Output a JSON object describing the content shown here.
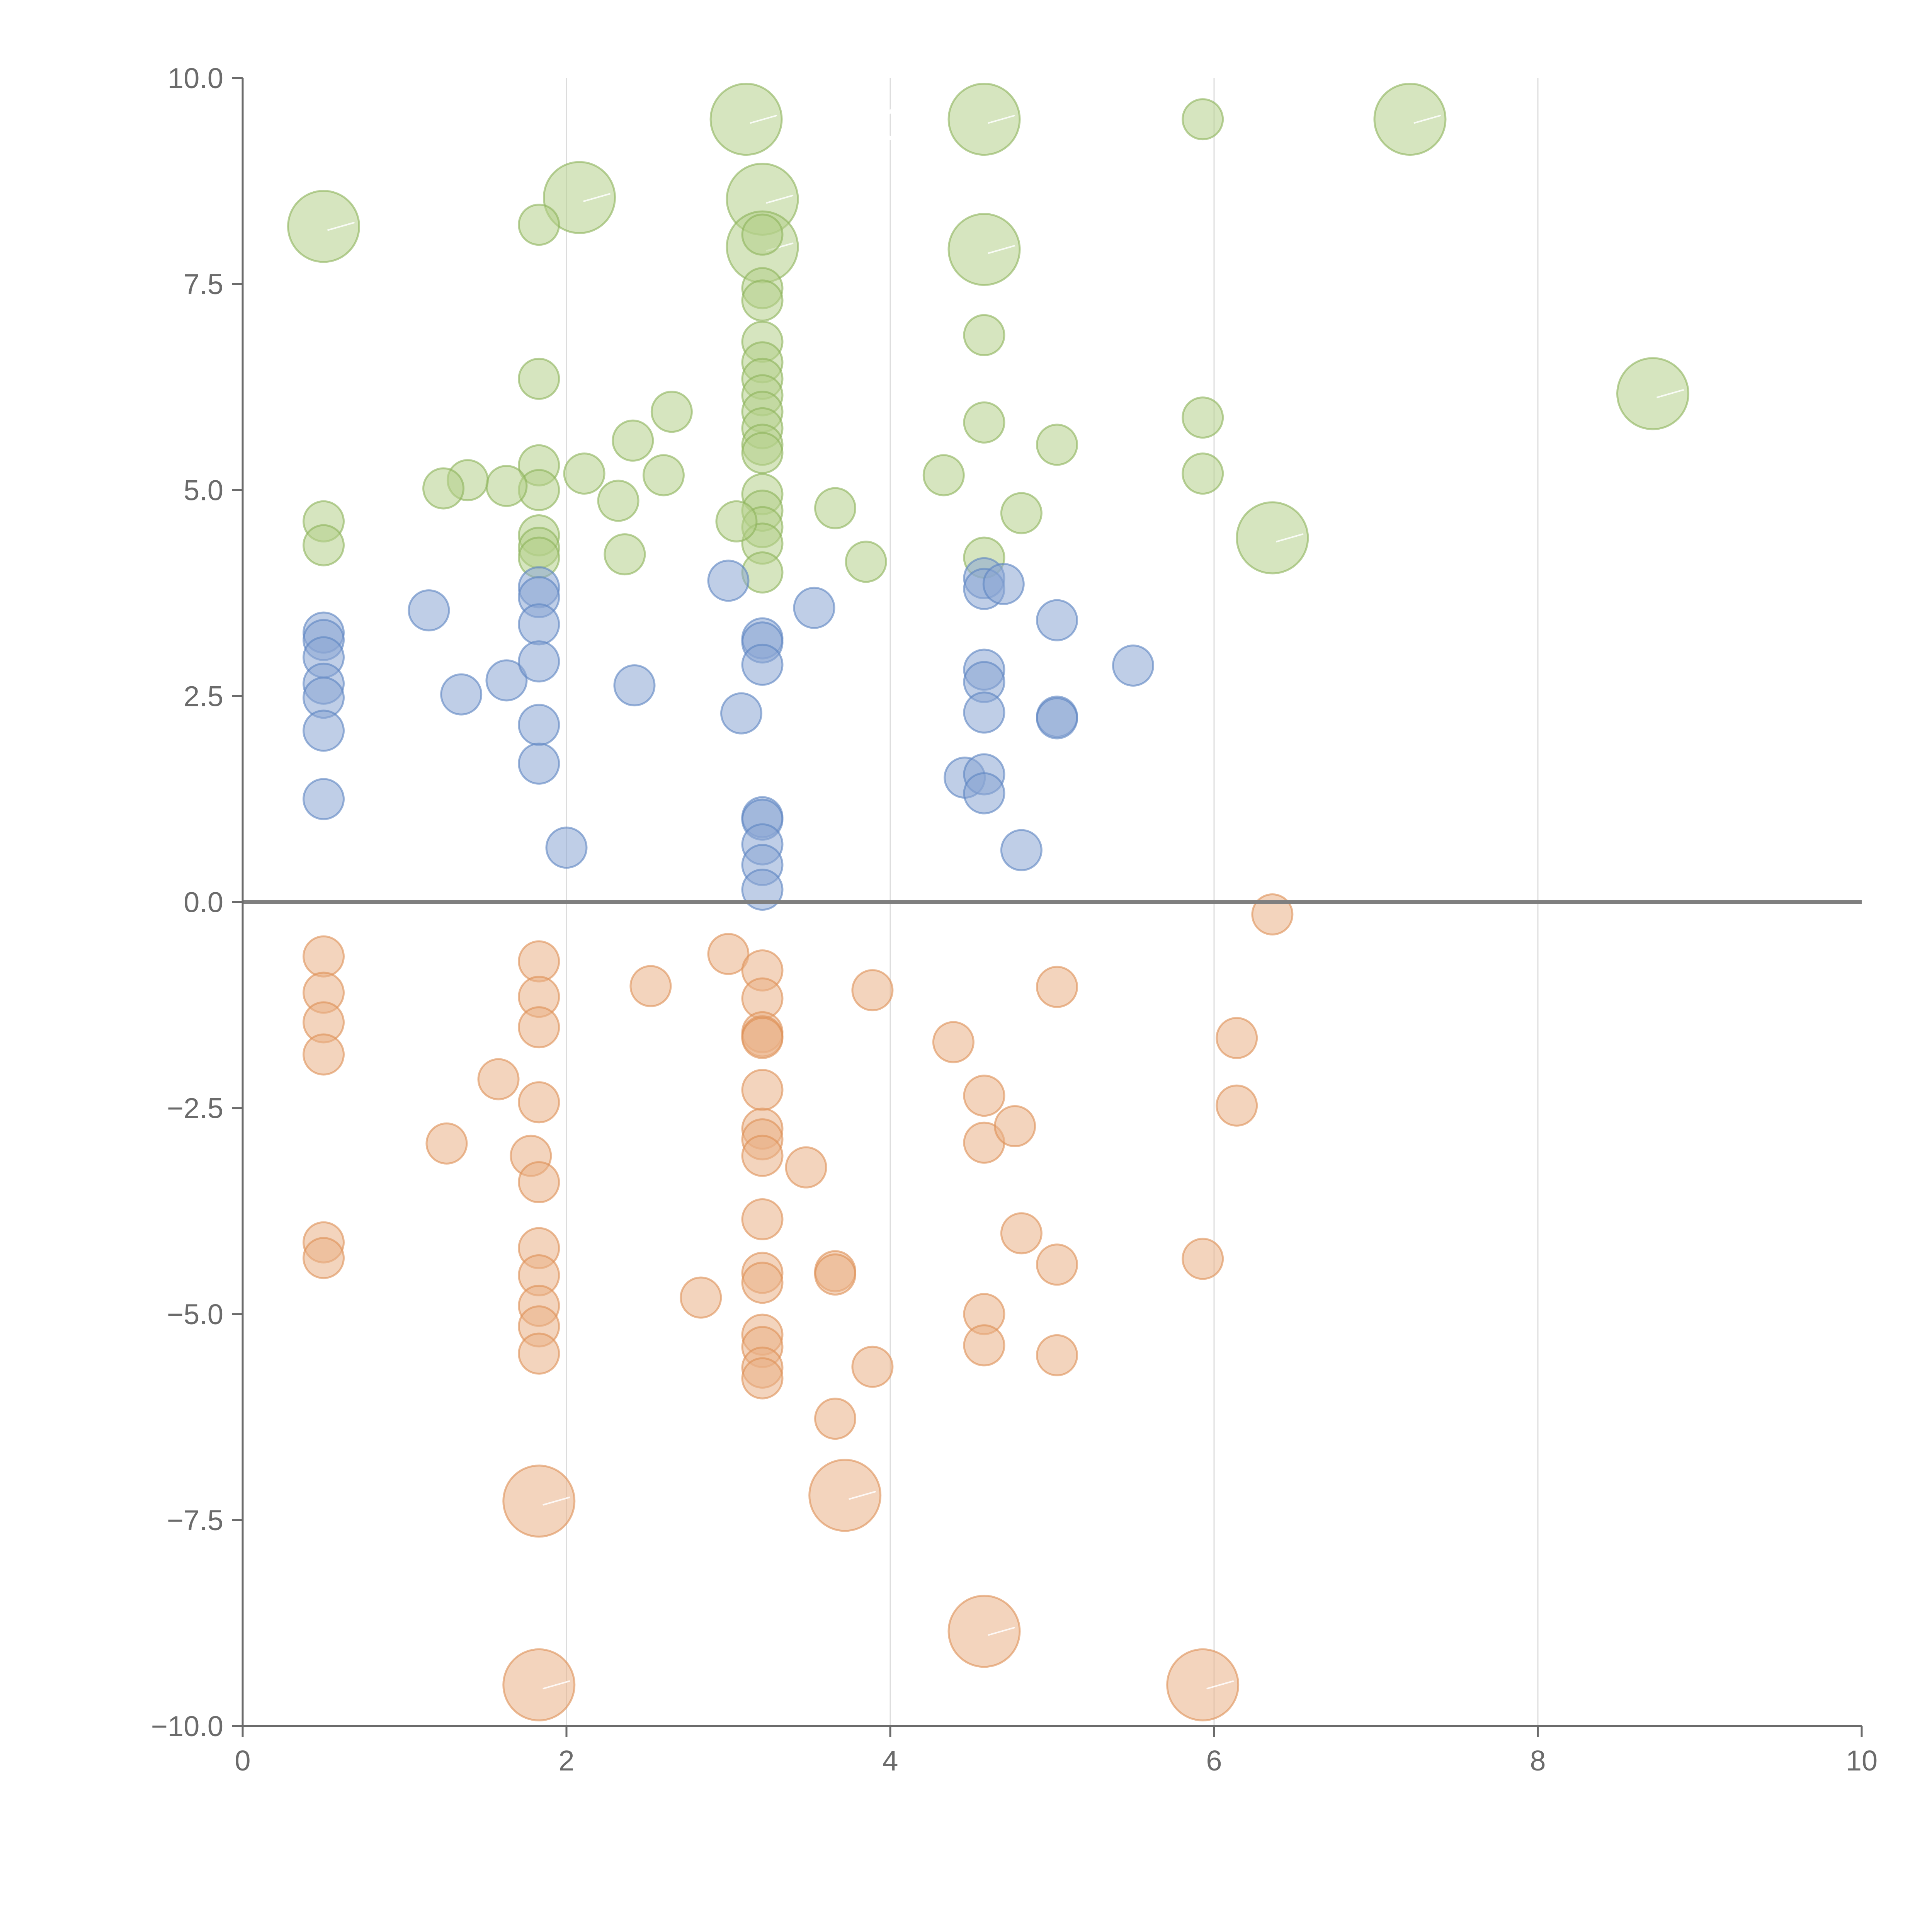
{
  "chart_data": {
    "type": "scatter",
    "title": "",
    "xlabel": "",
    "ylabel": "",
    "xlim": [
      0,
      10
    ],
    "ylim": [
      -10,
      10
    ],
    "grid": {
      "vertical": [
        2,
        4,
        6,
        8
      ],
      "horizontal": [
        0
      ]
    },
    "x_ticks": [
      "0",
      "2",
      "4",
      "6",
      "8",
      "10"
    ],
    "y_ticks": [
      "10.0",
      "7.5",
      "5.0",
      "2.5",
      "0.0",
      "−2.5",
      "−5.0",
      "−7.5",
      "−10.0"
    ],
    "colors": {
      "green": "#b5cf8b",
      "green_stroke": "#8cb35a",
      "blue": "#8aa6d4",
      "blue_stroke": "#5c84c2",
      "orange": "#eab187",
      "orange_stroke": "#de8f55",
      "axis": "#6b6b6b",
      "grid": "#dcdcdc"
    },
    "annotations": [
      "U",
      "ox"
    ],
    "series": [
      {
        "name": "green",
        "points": [
          [
            0.5,
            8.2,
            1
          ],
          [
            2.08,
            8.55,
            1
          ],
          [
            3.11,
            9.5,
            1
          ],
          [
            3.21,
            8.53,
            1
          ],
          [
            3.21,
            7.95,
            1
          ],
          [
            4.58,
            9.5,
            1
          ],
          [
            4.58,
            7.92,
            1
          ],
          [
            7.21,
            9.5,
            1
          ],
          [
            8.71,
            6.17,
            1
          ],
          [
            6.36,
            4.42,
            1
          ],
          [
            1.83,
            8.22,
            0
          ],
          [
            3.21,
            8.1,
            0
          ],
          [
            4.58,
            6.88,
            0
          ],
          [
            5.93,
            9.5,
            0
          ],
          [
            1.83,
            6.35,
            0
          ],
          [
            2.65,
            5.95,
            0
          ],
          [
            3.21,
            7.45,
            0
          ],
          [
            3.21,
            7.3,
            0
          ],
          [
            3.21,
            6.8,
            0
          ],
          [
            3.21,
            6.55,
            0
          ],
          [
            3.21,
            6.35,
            0
          ],
          [
            3.21,
            6.15,
            0
          ],
          [
            3.21,
            5.95,
            0
          ],
          [
            3.21,
            5.75,
            0
          ],
          [
            3.21,
            5.55,
            0
          ],
          [
            3.21,
            5.45,
            0
          ],
          [
            4.58,
            5.82,
            0
          ],
          [
            5.03,
            5.55,
            0
          ],
          [
            5.93,
            5.88,
            0
          ],
          [
            5.93,
            5.2,
            0
          ],
          [
            4.33,
            5.18,
            0
          ],
          [
            4.81,
            4.72,
            0
          ],
          [
            4.58,
            4.18,
            0
          ],
          [
            3.66,
            4.78,
            0
          ],
          [
            3.85,
            4.13,
            0
          ],
          [
            3.21,
            4.95,
            0
          ],
          [
            3.21,
            4.75,
            0
          ],
          [
            3.21,
            4.55,
            0
          ],
          [
            3.21,
            4.35,
            0
          ],
          [
            3.21,
            4.0,
            0
          ],
          [
            3.05,
            4.62,
            0
          ],
          [
            2.41,
            5.6,
            0
          ],
          [
            2.6,
            5.18,
            0
          ],
          [
            2.32,
            4.87,
            0
          ],
          [
            2.36,
            4.22,
            0
          ],
          [
            2.11,
            5.2,
            0
          ],
          [
            1.83,
            5.3,
            0
          ],
          [
            1.83,
            5.0,
            0
          ],
          [
            1.83,
            4.45,
            0
          ],
          [
            1.83,
            4.3,
            0
          ],
          [
            1.83,
            4.18,
            0
          ],
          [
            1.63,
            5.05,
            0
          ],
          [
            1.39,
            5.12,
            0
          ],
          [
            1.24,
            5.02,
            0
          ],
          [
            0.5,
            4.62,
            0
          ],
          [
            0.5,
            4.33,
            0
          ]
        ]
      },
      {
        "name": "blue",
        "points": [
          [
            0.5,
            3.27,
            0
          ],
          [
            0.5,
            3.18,
            0
          ],
          [
            0.5,
            2.97,
            0
          ],
          [
            0.5,
            2.65,
            0
          ],
          [
            0.5,
            2.48,
            0
          ],
          [
            0.5,
            2.08,
            0
          ],
          [
            0.5,
            1.25,
            0
          ],
          [
            1.15,
            3.54,
            0
          ],
          [
            1.35,
            2.52,
            0
          ],
          [
            1.63,
            2.69,
            0
          ],
          [
            1.83,
            3.82,
            0
          ],
          [
            1.83,
            3.7,
            0
          ],
          [
            1.83,
            3.37,
            0
          ],
          [
            1.83,
            2.92,
            0
          ],
          [
            1.83,
            2.15,
            0
          ],
          [
            1.83,
            1.68,
            0
          ],
          [
            2.0,
            0.66,
            0
          ],
          [
            2.42,
            2.63,
            0
          ],
          [
            3.0,
            3.9,
            0
          ],
          [
            3.08,
            2.29,
            0
          ],
          [
            3.21,
            3.2,
            0
          ],
          [
            3.21,
            3.15,
            0
          ],
          [
            3.21,
            2.88,
            0
          ],
          [
            3.21,
            1.03,
            0
          ],
          [
            3.21,
            1.0,
            0
          ],
          [
            3.21,
            0.7,
            0
          ],
          [
            3.21,
            0.45,
            0
          ],
          [
            3.21,
            0.15,
            0
          ],
          [
            3.53,
            3.57,
            0
          ],
          [
            4.46,
            1.51,
            0
          ],
          [
            4.58,
            3.93,
            0
          ],
          [
            4.58,
            3.8,
            0
          ],
          [
            4.58,
            2.82,
            0
          ],
          [
            4.58,
            2.67,
            0
          ],
          [
            4.58,
            2.3,
            0
          ],
          [
            4.58,
            1.55,
            0
          ],
          [
            4.58,
            1.32,
            0
          ],
          [
            4.7,
            3.86,
            0
          ],
          [
            4.81,
            0.63,
            0
          ],
          [
            5.03,
            3.42,
            0
          ],
          [
            5.03,
            2.25,
            0
          ],
          [
            5.03,
            2.23,
            0
          ],
          [
            5.5,
            2.87,
            0
          ]
        ]
      },
      {
        "name": "orange",
        "points": [
          [
            1.83,
            -7.27,
            1
          ],
          [
            3.72,
            -7.2,
            1
          ],
          [
            4.58,
            -8.85,
            1
          ],
          [
            1.83,
            -9.5,
            1
          ],
          [
            5.93,
            -9.5,
            1
          ],
          [
            6.36,
            -0.15,
            0
          ],
          [
            0.5,
            -0.66,
            0
          ],
          [
            0.5,
            -1.1,
            0
          ],
          [
            0.5,
            -1.46,
            0
          ],
          [
            0.5,
            -1.85,
            0
          ],
          [
            0.5,
            -4.13,
            0
          ],
          [
            0.5,
            -4.32,
            0
          ],
          [
            1.26,
            -2.93,
            0
          ],
          [
            1.58,
            -2.15,
            0
          ],
          [
            1.78,
            -3.08,
            0
          ],
          [
            1.83,
            -0.72,
            0
          ],
          [
            1.83,
            -1.15,
            0
          ],
          [
            1.83,
            -1.52,
            0
          ],
          [
            1.83,
            -2.43,
            0
          ],
          [
            1.83,
            -3.4,
            0
          ],
          [
            1.83,
            -4.2,
            0
          ],
          [
            1.83,
            -4.53,
            0
          ],
          [
            1.83,
            -4.9,
            0
          ],
          [
            1.83,
            -5.15,
            0
          ],
          [
            1.83,
            -5.48,
            0
          ],
          [
            2.52,
            -1.02,
            0
          ],
          [
            2.83,
            -4.8,
            0
          ],
          [
            3.0,
            -0.63,
            0
          ],
          [
            3.21,
            -0.83,
            0
          ],
          [
            3.21,
            -1.17,
            0
          ],
          [
            3.21,
            -1.58,
            0
          ],
          [
            3.21,
            -1.63,
            0
          ],
          [
            3.21,
            -1.65,
            0
          ],
          [
            3.21,
            -2.28,
            0
          ],
          [
            3.21,
            -2.75,
            0
          ],
          [
            3.21,
            -2.88,
            0
          ],
          [
            3.21,
            -3.08,
            0
          ],
          [
            3.21,
            -3.85,
            0
          ],
          [
            3.21,
            -4.5,
            0
          ],
          [
            3.21,
            -4.62,
            0
          ],
          [
            3.21,
            -5.25,
            0
          ],
          [
            3.21,
            -5.4,
            0
          ],
          [
            3.21,
            -5.65,
            0
          ],
          [
            3.21,
            -5.78,
            0
          ],
          [
            3.48,
            -3.22,
            0
          ],
          [
            3.66,
            -4.48,
            0
          ],
          [
            3.66,
            -4.52,
            0
          ],
          [
            3.66,
            -6.27,
            0
          ],
          [
            3.89,
            -1.07,
            0
          ],
          [
            3.89,
            -5.64,
            0
          ],
          [
            4.39,
            -1.7,
            0
          ],
          [
            4.58,
            -2.35,
            0
          ],
          [
            4.58,
            -2.92,
            0
          ],
          [
            4.58,
            -5.0,
            0
          ],
          [
            4.58,
            -5.38,
            0
          ],
          [
            4.77,
            -2.72,
            0
          ],
          [
            4.81,
            -4.02,
            0
          ],
          [
            5.03,
            -1.03,
            0
          ],
          [
            5.03,
            -4.4,
            0
          ],
          [
            5.03,
            -5.5,
            0
          ],
          [
            5.93,
            -4.33,
            0
          ],
          [
            6.14,
            -1.65,
            0
          ],
          [
            6.14,
            -2.47,
            0
          ]
        ]
      }
    ]
  }
}
